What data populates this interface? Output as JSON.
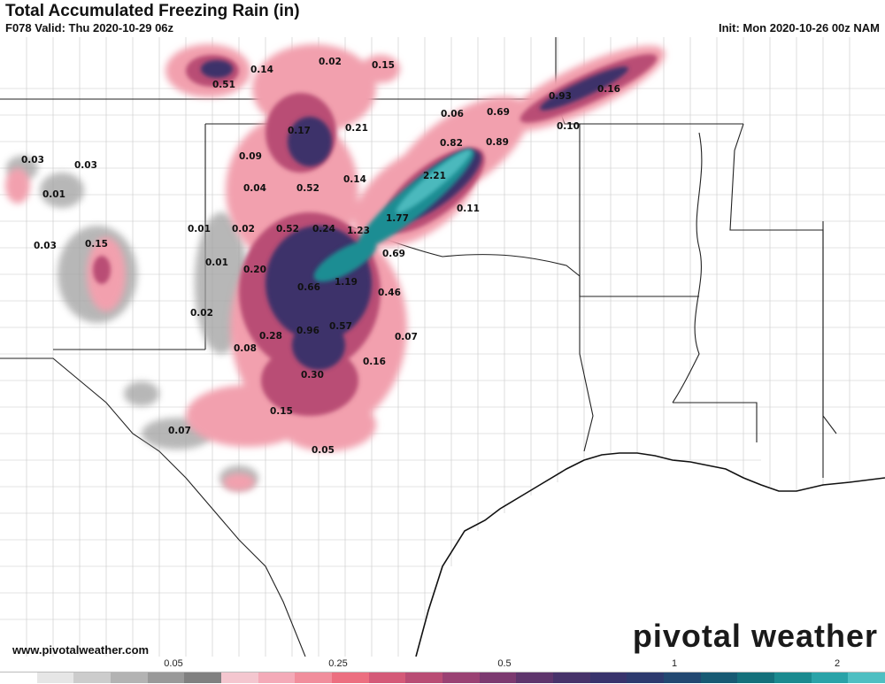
{
  "header": {
    "title": "Total Accumulated Freezing Rain (in)",
    "valid": "F078 Valid: Thu 2020-10-29 06z",
    "init": "Init: Mon 2020-10-26 00z NAM"
  },
  "footer": {
    "website": "www.pivotalweather.com",
    "brand": "pivotal weather"
  },
  "legend": {
    "tick_labels": [
      "0.05",
      "0.25",
      "0.5",
      "1",
      "2"
    ],
    "colors": [
      "#ffffff",
      "#e6e6e6",
      "#cccccc",
      "#b3b3b3",
      "#999999",
      "#808080",
      "#f4c6cf",
      "#f4aab8",
      "#f18e9c",
      "#ec6f80",
      "#d45a78",
      "#b94d74",
      "#9a4273",
      "#7c3a70",
      "#5e356c",
      "#47336a",
      "#38336c",
      "#2d3a6e",
      "#224871",
      "#175a73",
      "#14707b",
      "#1b8a8f",
      "#2aa3a8",
      "#4fbfc2"
    ]
  },
  "map": {
    "labels": [
      {
        "text": "0.51"
      },
      {
        "text": "0.14"
      },
      {
        "text": "0.02"
      },
      {
        "text": "0.15"
      },
      {
        "text": "0.17"
      },
      {
        "text": "0.21"
      },
      {
        "text": "0.06"
      },
      {
        "text": "0.69"
      },
      {
        "text": "0.93"
      },
      {
        "text": "0.16"
      },
      {
        "text": "0.10"
      },
      {
        "text": "0.82"
      },
      {
        "text": "0.89"
      },
      {
        "text": "0.09"
      },
      {
        "text": "0.03"
      },
      {
        "text": "0.03"
      },
      {
        "text": "0.14"
      },
      {
        "text": "2.21"
      },
      {
        "text": "0.01"
      },
      {
        "text": "0.04"
      },
      {
        "text": "0.52"
      },
      {
        "text": "0.11"
      },
      {
        "text": "1.77"
      },
      {
        "text": "0.01"
      },
      {
        "text": "0.02"
      },
      {
        "text": "0.52"
      },
      {
        "text": "0.24"
      },
      {
        "text": "1.23"
      },
      {
        "text": "0.03"
      },
      {
        "text": "0.15"
      },
      {
        "text": "0.69"
      },
      {
        "text": "0.01"
      },
      {
        "text": "0.20"
      },
      {
        "text": "1.19"
      },
      {
        "text": "0.66"
      },
      {
        "text": "0.46"
      },
      {
        "text": "0.02"
      },
      {
        "text": "0.57"
      },
      {
        "text": "0.96"
      },
      {
        "text": "0.28"
      },
      {
        "text": "0.07"
      },
      {
        "text": "0.08"
      },
      {
        "text": "0.16"
      },
      {
        "text": "0.30"
      },
      {
        "text": "0.15"
      },
      {
        "text": "0.07"
      },
      {
        "text": "0.05"
      }
    ]
  }
}
